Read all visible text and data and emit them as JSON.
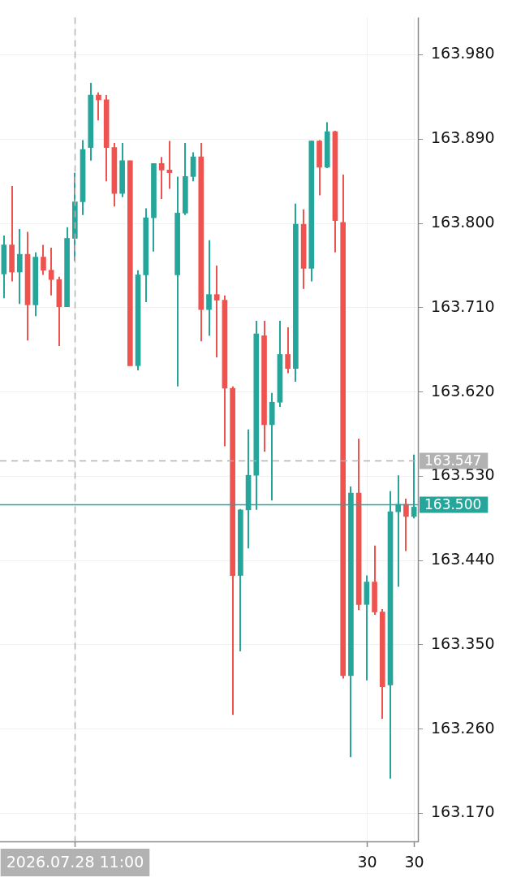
{
  "chart_data": {
    "type": "candlestick",
    "categories": [
      null,
      null,
      null,
      null,
      null,
      null,
      null,
      null,
      null,
      "2026.07.28 11:00",
      null,
      null,
      null,
      null,
      null,
      null,
      null,
      null,
      null,
      null,
      null,
      null,
      null,
      null,
      null,
      null,
      null,
      null,
      null,
      null,
      null,
      null,
      null,
      null,
      null,
      null,
      null,
      null,
      null,
      null,
      null,
      null,
      null,
      null,
      null,
      null,
      "30",
      null,
      null,
      null,
      null,
      null,
      "30"
    ],
    "ohlc": [
      [
        163.746,
        163.787,
        163.72,
        163.777
      ],
      [
        163.777,
        163.84,
        163.738,
        163.748
      ],
      [
        163.748,
        163.794,
        163.714,
        163.767
      ],
      [
        163.767,
        163.791,
        163.675,
        163.713
      ],
      [
        163.713,
        163.769,
        163.701,
        163.764
      ],
      [
        163.764,
        163.777,
        163.745,
        163.75
      ],
      [
        163.75,
        163.774,
        163.723,
        163.74
      ],
      [
        163.74,
        163.743,
        163.669,
        163.711
      ],
      [
        163.711,
        163.796,
        163.711,
        163.784
      ],
      [
        163.784,
        163.854,
        163.76,
        163.823
      ],
      [
        163.823,
        163.889,
        163.809,
        163.879
      ],
      [
        163.881,
        163.95,
        163.867,
        163.937
      ],
      [
        163.937,
        163.94,
        163.91,
        163.932
      ],
      [
        163.932,
        163.937,
        163.845,
        163.881
      ],
      [
        163.881,
        163.886,
        163.818,
        163.832
      ],
      [
        163.832,
        163.886,
        163.828,
        163.867
      ],
      [
        163.867,
        163.867,
        163.648,
        163.648
      ],
      [
        163.648,
        163.75,
        163.643,
        163.745
      ],
      [
        163.745,
        163.816,
        163.716,
        163.806
      ],
      [
        163.806,
        163.864,
        163.77,
        163.864
      ],
      [
        163.864,
        163.871,
        163.826,
        163.857
      ],
      [
        163.857,
        163.888,
        163.837,
        163.854
      ],
      [
        163.745,
        163.85,
        163.626,
        163.811
      ],
      [
        163.811,
        163.886,
        163.809,
        163.85
      ],
      [
        163.85,
        163.876,
        163.845,
        163.871
      ],
      [
        163.871,
        163.886,
        163.674,
        163.708
      ],
      [
        163.708,
        163.782,
        163.68,
        163.724
      ],
      [
        163.724,
        163.755,
        163.657,
        163.718
      ],
      [
        163.718,
        163.723,
        163.562,
        163.624
      ],
      [
        163.624,
        163.626,
        163.275,
        163.424
      ],
      [
        163.424,
        163.495,
        163.343,
        163.494
      ],
      [
        163.494,
        163.58,
        163.453,
        163.531
      ],
      [
        163.531,
        163.696,
        163.494,
        163.682
      ],
      [
        163.68,
        163.696,
        163.556,
        163.585
      ],
      [
        163.585,
        163.619,
        163.504,
        163.609
      ],
      [
        163.609,
        163.696,
        163.604,
        163.66
      ],
      [
        163.66,
        163.689,
        163.64,
        163.645
      ],
      [
        163.645,
        163.821,
        163.631,
        163.799
      ],
      [
        163.799,
        163.815,
        163.73,
        163.752
      ],
      [
        163.752,
        163.888,
        163.738,
        163.888
      ],
      [
        163.888,
        163.889,
        163.83,
        163.86
      ],
      [
        163.86,
        163.908,
        163.859,
        163.898
      ],
      [
        163.898,
        163.899,
        163.769,
        163.803
      ],
      [
        163.801,
        163.852,
        163.314,
        163.317
      ],
      [
        163.317,
        163.519,
        163.23,
        163.512
      ],
      [
        163.512,
        163.57,
        163.387,
        163.393
      ],
      [
        163.393,
        163.424,
        163.312,
        163.417
      ],
      [
        163.417,
        163.456,
        163.382,
        163.385
      ],
      [
        163.385,
        163.388,
        163.271,
        163.305
      ],
      [
        163.307,
        163.514,
        163.207,
        163.492
      ],
      [
        163.492,
        163.531,
        163.412,
        163.5
      ],
      [
        163.5,
        163.506,
        163.45,
        163.487
      ],
      [
        163.487,
        163.553,
        163.485,
        163.497
      ]
    ],
    "colors": [
      "#26a69a",
      "#ef5350",
      "#26a69a",
      "#ef5350",
      "#26a69a",
      "#ef5350",
      "#ef5350",
      "#ef5350",
      "#26a69a",
      "#26a69a",
      "#26a69a",
      "#26a69a",
      "#ef5350",
      "#ef5350",
      "#ef5350",
      "#26a69a",
      "#ef5350",
      "#26a69a",
      "#26a69a",
      "#26a69a",
      "#ef5350",
      "#ef5350",
      "#26a69a",
      "#26a69a",
      "#26a69a",
      "#ef5350",
      "#26a69a",
      "#ef5350",
      "#ef5350",
      "#ef5350",
      "#26a69a",
      "#26a69a",
      "#26a69a",
      "#ef5350",
      "#26a69a",
      "#26a69a",
      "#ef5350",
      "#26a69a",
      "#ef5350",
      "#26a69a",
      "#ef5350",
      "#26a69a",
      "#ef5350",
      "#ef5350",
      "#26a69a",
      "#ef5350",
      "#26a69a",
      "#ef5350",
      "#ef5350",
      "#26a69a",
      "#26a69a",
      "#ef5350",
      "#26a69a"
    ],
    "ylim": [
      163.14,
      164.02
    ],
    "yticks": [
      {
        "value": 163.17,
        "label": "163.170"
      },
      {
        "value": 163.26,
        "label": "163.260"
      },
      {
        "value": 163.35,
        "label": "163.350"
      },
      {
        "value": 163.44,
        "label": "163.440"
      },
      {
        "value": 163.53,
        "label": "163.530"
      },
      {
        "value": 163.62,
        "label": "163.620"
      },
      {
        "value": 163.71,
        "label": "163.710"
      },
      {
        "value": 163.8,
        "label": "163.800"
      },
      {
        "value": 163.89,
        "label": "163.890"
      },
      {
        "value": 163.98,
        "label": "163.980"
      }
    ],
    "grid": true,
    "ref_lines": [
      {
        "axis": "y",
        "value": 163.547,
        "label": "163.547",
        "color": "#b2b2b2",
        "line_style": "dashed"
      },
      {
        "axis": "y",
        "value": 163.5,
        "label": "163.500",
        "color": "#26a69a",
        "line_style": "solid"
      },
      {
        "axis": "x",
        "value": "2026.07.28 11:00",
        "color": "#b2b2b2",
        "line_style": "dashed"
      }
    ]
  }
}
